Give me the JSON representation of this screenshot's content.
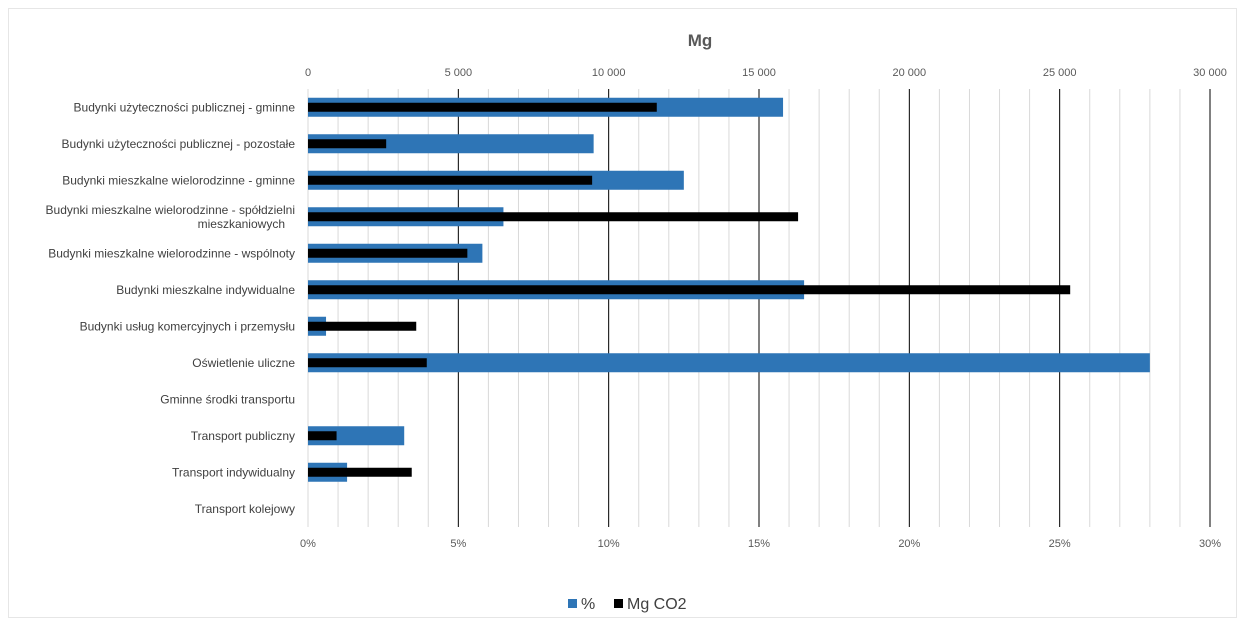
{
  "chart_data": {
    "type": "bar",
    "title": "Mg",
    "orientation": "horizontal",
    "top_axis": {
      "range": [
        0,
        30000
      ],
      "ticks": [
        "0",
        "5 000",
        "10 000",
        "15 000",
        "20 000",
        "25 000",
        "30 000"
      ]
    },
    "bottom_axis": {
      "range": [
        0,
        0.3
      ],
      "ticks": [
        "0%",
        "5%",
        "10%",
        "15%",
        "20%",
        "25%",
        "30%"
      ]
    },
    "grid": true,
    "legend_position": "bottom",
    "categories": [
      [
        "Budynki użyteczności publicznej - gminne"
      ],
      [
        "Budynki użyteczności publicznej - pozostałe"
      ],
      [
        "Budynki mieszkalne wielorodzinne - gminne"
      ],
      [
        "Budynki mieszkalne wielorodzinne - spółdzielni",
        "mieszkaniowych"
      ],
      [
        "Budynki mieszkalne wielorodzinne - wspólnoty"
      ],
      [
        "Budynki mieszkalne indywidualne"
      ],
      [
        "Budynki usług komercyjnych i przemysłu"
      ],
      [
        "Oświetlenie uliczne"
      ],
      [
        "Gminne środki transportu"
      ],
      [
        "Transport publiczny"
      ],
      [
        "Transport  indywidualny"
      ],
      [
        "Transport kolejowy"
      ]
    ],
    "series": [
      {
        "name": "%",
        "color": "#2e75b6",
        "axis": "bottom",
        "values": [
          0.158,
          0.095,
          0.125,
          0.065,
          0.058,
          0.165,
          0.006,
          0.28,
          0,
          0.032,
          0.013,
          0
        ]
      },
      {
        "name": "Mg CO2",
        "color": "#000000",
        "axis": "top",
        "values": [
          11600,
          2600,
          9450,
          16300,
          5300,
          25350,
          3600,
          3950,
          0,
          950,
          3450,
          0
        ]
      }
    ]
  }
}
